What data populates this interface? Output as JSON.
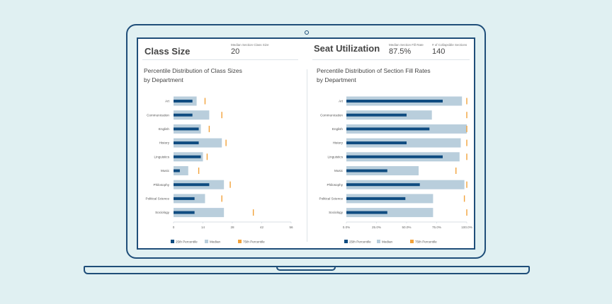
{
  "left_panel": {
    "title": "Class Size",
    "kpi_label": "Median Section Class Size",
    "kpi_value": "20",
    "subtitle_line1": "Percentile Distribution of Class Sizes",
    "subtitle_line2": "by Department"
  },
  "right_panel": {
    "title": "Seat Utilization",
    "kpi1_label": "Median Section Fill Rate",
    "kpi1_value": "87.5%",
    "kpi2_label": "# of Collapsible Sections",
    "kpi2_value": "140",
    "subtitle_line1": "Percentile Distribution of Section Fill Rates",
    "subtitle_line2": "by Department"
  },
  "legend": {
    "p25": "25th Percentile",
    "median": "Median",
    "p75": "75th Percentile"
  },
  "colors": {
    "p25": "#0f4c81",
    "median": "#b9cedc",
    "p75": "#f2a23a",
    "outline": "#1f4e79"
  },
  "chart_data": [
    {
      "type": "bar",
      "categories": [
        "Art",
        "Communication",
        "English",
        "History",
        "Linguistics",
        "Music",
        "Philosophy",
        "Political Science",
        "Sociology"
      ],
      "series": [
        {
          "name": "25th Percentile",
          "values": [
            9,
            9,
            12,
            12,
            13,
            3,
            17,
            10,
            10
          ]
        },
        {
          "name": "Median",
          "values": [
            11,
            17,
            13,
            23,
            14,
            7,
            24,
            15,
            24
          ]
        },
        {
          "name": "75th Percentile",
          "values": [
            15,
            23,
            17,
            25,
            16,
            12,
            27,
            23,
            38
          ]
        }
      ],
      "xticks": [
        "0",
        "14",
        "28",
        "42",
        "56"
      ],
      "xlim": [
        0,
        56
      ]
    },
    {
      "type": "bar",
      "categories": [
        "Art",
        "Communication",
        "English",
        "History",
        "Linguistics",
        "Music",
        "Philosophy",
        "Political Science",
        "Sociology"
      ],
      "series": [
        {
          "name": "25th Percentile",
          "values": [
            80,
            50,
            69,
            50,
            80,
            34,
            61,
            49,
            34
          ]
        },
        {
          "name": "Median",
          "values": [
            96,
            71,
            100,
            95,
            94,
            60,
            98,
            72,
            72
          ]
        },
        {
          "name": "75th Percentile",
          "values": [
            100,
            100,
            100,
            100,
            100,
            91,
            100,
            98,
            100
          ]
        }
      ],
      "xticks": [
        "0.0%",
        "25.0%",
        "50.0%",
        "75.0%",
        "100.0%"
      ],
      "xlim": [
        0,
        100
      ]
    }
  ]
}
